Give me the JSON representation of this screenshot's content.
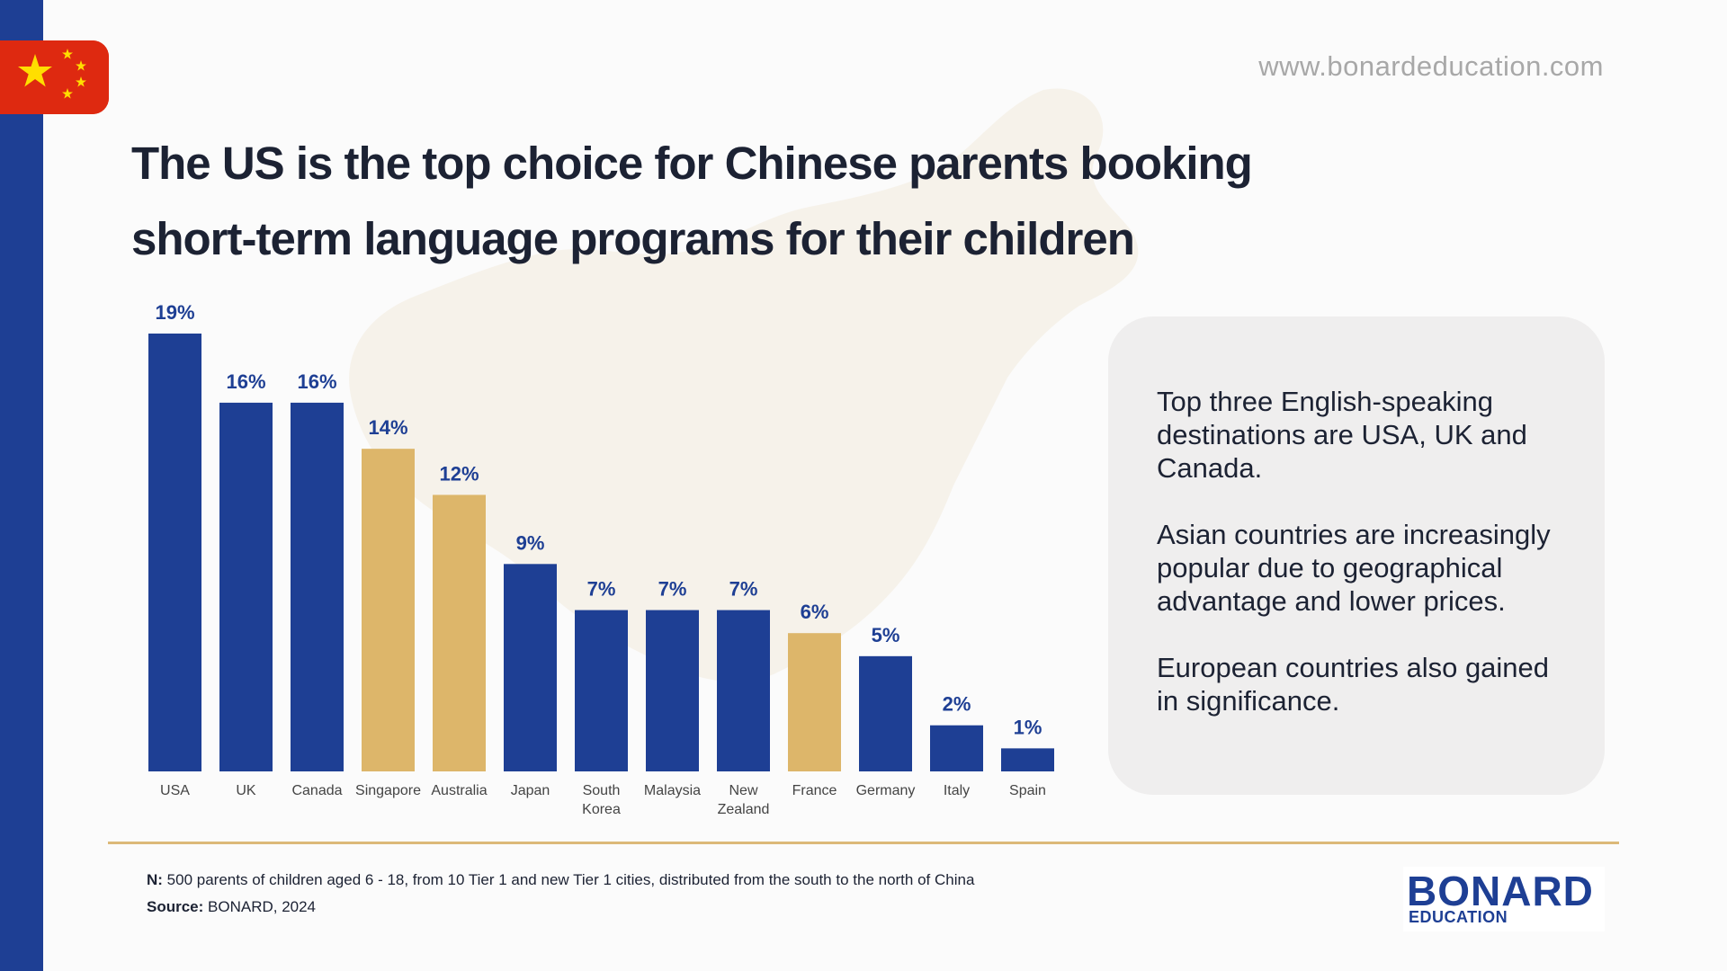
{
  "header": {
    "website": "www.bonardeducation.com",
    "title_line1": "The US is the top choice for Chinese parents booking",
    "title_line2": "short-term language programs for their children"
  },
  "chart_data": {
    "type": "bar",
    "categories": [
      "USA",
      "UK",
      "Canada",
      "Singapore",
      "Australia",
      "Japan",
      "South Korea",
      "Malaysia",
      "New Zealand",
      "France",
      "Germany",
      "Italy",
      "Spain"
    ],
    "values": [
      19,
      16,
      16,
      14,
      12,
      9,
      7,
      7,
      7,
      6,
      5,
      2,
      1
    ],
    "value_labels": [
      "19%",
      "16%",
      "16%",
      "14%",
      "12%",
      "9%",
      "7%",
      "7%",
      "7%",
      "6%",
      "5%",
      "2%",
      "1%"
    ],
    "bar_colors": [
      "#1e3f94",
      "#1e3f94",
      "#1e3f94",
      "#ddb66a",
      "#ddb66a",
      "#1e3f94",
      "#1e3f94",
      "#1e3f94",
      "#1e3f94",
      "#ddb66a",
      "#1e3f94",
      "#1e3f94",
      "#1e3f94"
    ],
    "label_color": "#1e3f94",
    "ylim": [
      0,
      19
    ],
    "unit": "%"
  },
  "info": {
    "p1": "Top three English-speaking destinations are USA, UK and Canada.",
    "p2": "Asian countries are increasingly popular due to geographical advantage and lower prices.",
    "p3": "European countries also gained in significance."
  },
  "footer": {
    "n_label": "N:",
    "n_text": " 500 parents of children aged 6 - 18, from 10 Tier 1 and new Tier 1 cities, distributed from the south to the north of China",
    "source_label": "Source:",
    "source_text": " BONARD, 2024"
  },
  "logo": {
    "word": "BONARD",
    "sub": "EDUCATION"
  },
  "colors": {
    "brand_blue": "#1e3f94",
    "accent_gold": "#ddb66a",
    "flag_red": "#de2910",
    "flag_star": "#ffde00"
  }
}
